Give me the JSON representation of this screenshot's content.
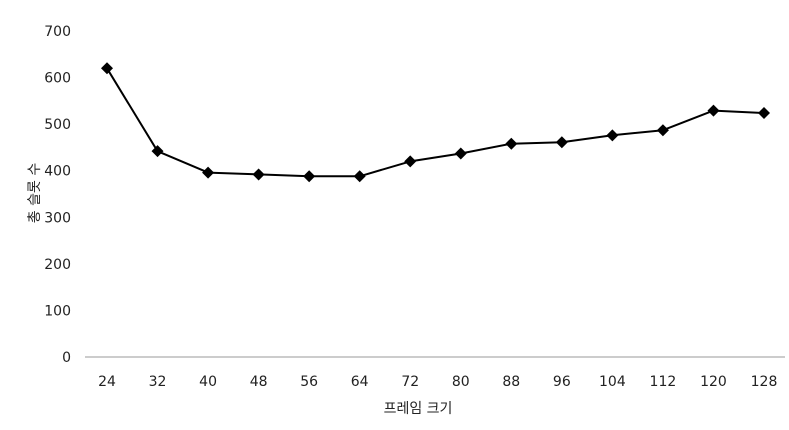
{
  "chart_data": {
    "type": "line",
    "title": "",
    "xlabel": "프레임 크기",
    "ylabel": "총 슬롯 수",
    "categories": [
      "24",
      "32",
      "40",
      "48",
      "56",
      "64",
      "72",
      "80",
      "88",
      "96",
      "104",
      "112",
      "120",
      "128"
    ],
    "series": [
      {
        "values": [
          620,
          442,
          396,
          392,
          388,
          388,
          420,
          437,
          458,
          461,
          476,
          487,
          529,
          524
        ],
        "color": "#000000",
        "marker": "diamond"
      }
    ],
    "ylim": [
      0,
      700
    ],
    "yticks": [
      "0",
      "100",
      "200",
      "300",
      "400",
      "500",
      "600",
      "700"
    ],
    "grid": false,
    "legend": "none"
  }
}
